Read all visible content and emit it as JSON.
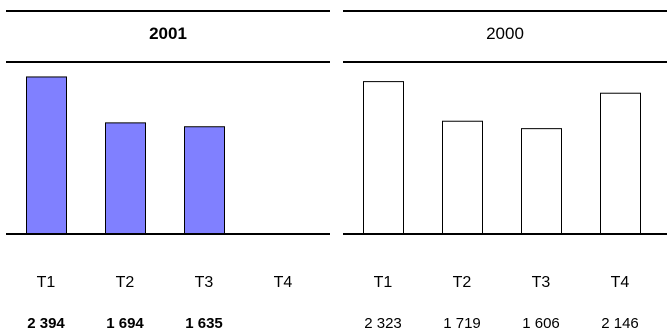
{
  "chart_data": [
    {
      "type": "bar",
      "title": "2001",
      "categories": [
        "T1",
        "T2",
        "T3",
        "T4"
      ],
      "values": [
        2394,
        1694,
        1635,
        null
      ],
      "value_labels": [
        "2 394",
        "1 694",
        "1 635",
        ""
      ],
      "ylim": [
        0,
        2500
      ],
      "bar_fill": "#8080ff",
      "bar_stroke": "#000000",
      "grid": false
    },
    {
      "type": "bar",
      "title": "2000",
      "categories": [
        "T1",
        "T2",
        "T3",
        "T4"
      ],
      "values": [
        2323,
        1719,
        1606,
        2146
      ],
      "value_labels": [
        "2 323",
        "1 719",
        "1 606",
        "2 146"
      ],
      "ylim": [
        0,
        2500
      ],
      "bar_fill": "#ffffff",
      "bar_stroke": "#000000",
      "grid": false
    }
  ]
}
